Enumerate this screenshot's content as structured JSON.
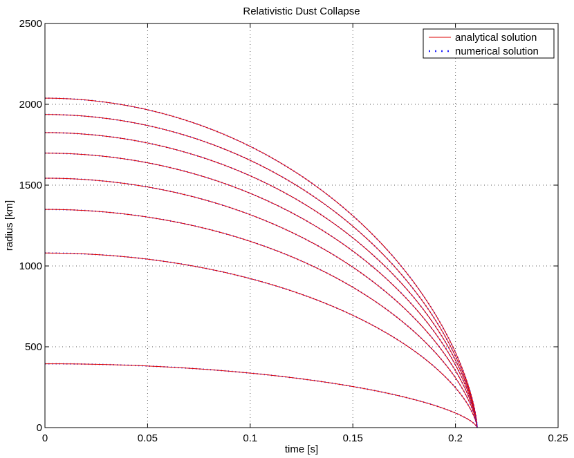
{
  "chart_data": {
    "type": "line",
    "title": "Relativistic Dust Collapse",
    "xlabel": "time [s]",
    "ylabel": "radius [km]",
    "xlim": [
      0,
      0.25
    ],
    "ylim": [
      0,
      2500
    ],
    "x_ticks": [
      0,
      0.05,
      0.1,
      0.15,
      0.2,
      0.25
    ],
    "x_tick_labels": [
      "0",
      "0.05",
      "0.1",
      "0.15",
      "0.2",
      "0.25"
    ],
    "y_ticks": [
      0,
      500,
      1000,
      1500,
      2000,
      2500
    ],
    "y_tick_labels": [
      "0",
      "500",
      "1000",
      "1500",
      "2000",
      "2500"
    ],
    "grid": true,
    "legend_position": "top-right",
    "collapse_time": 0.2105,
    "legend": [
      {
        "label": "analytical solution",
        "color": "#dd0000",
        "style": "solid"
      },
      {
        "label": "numerical solution",
        "color": "#2222ff",
        "style": "dotted"
      }
    ],
    "initial_radii": [
      395,
      1080,
      1350,
      1543,
      1698,
      1825,
      1937,
      2038
    ],
    "colors": {
      "analytical": "#dd0000",
      "numerical": "#2222ff",
      "grid": "#555555"
    }
  }
}
